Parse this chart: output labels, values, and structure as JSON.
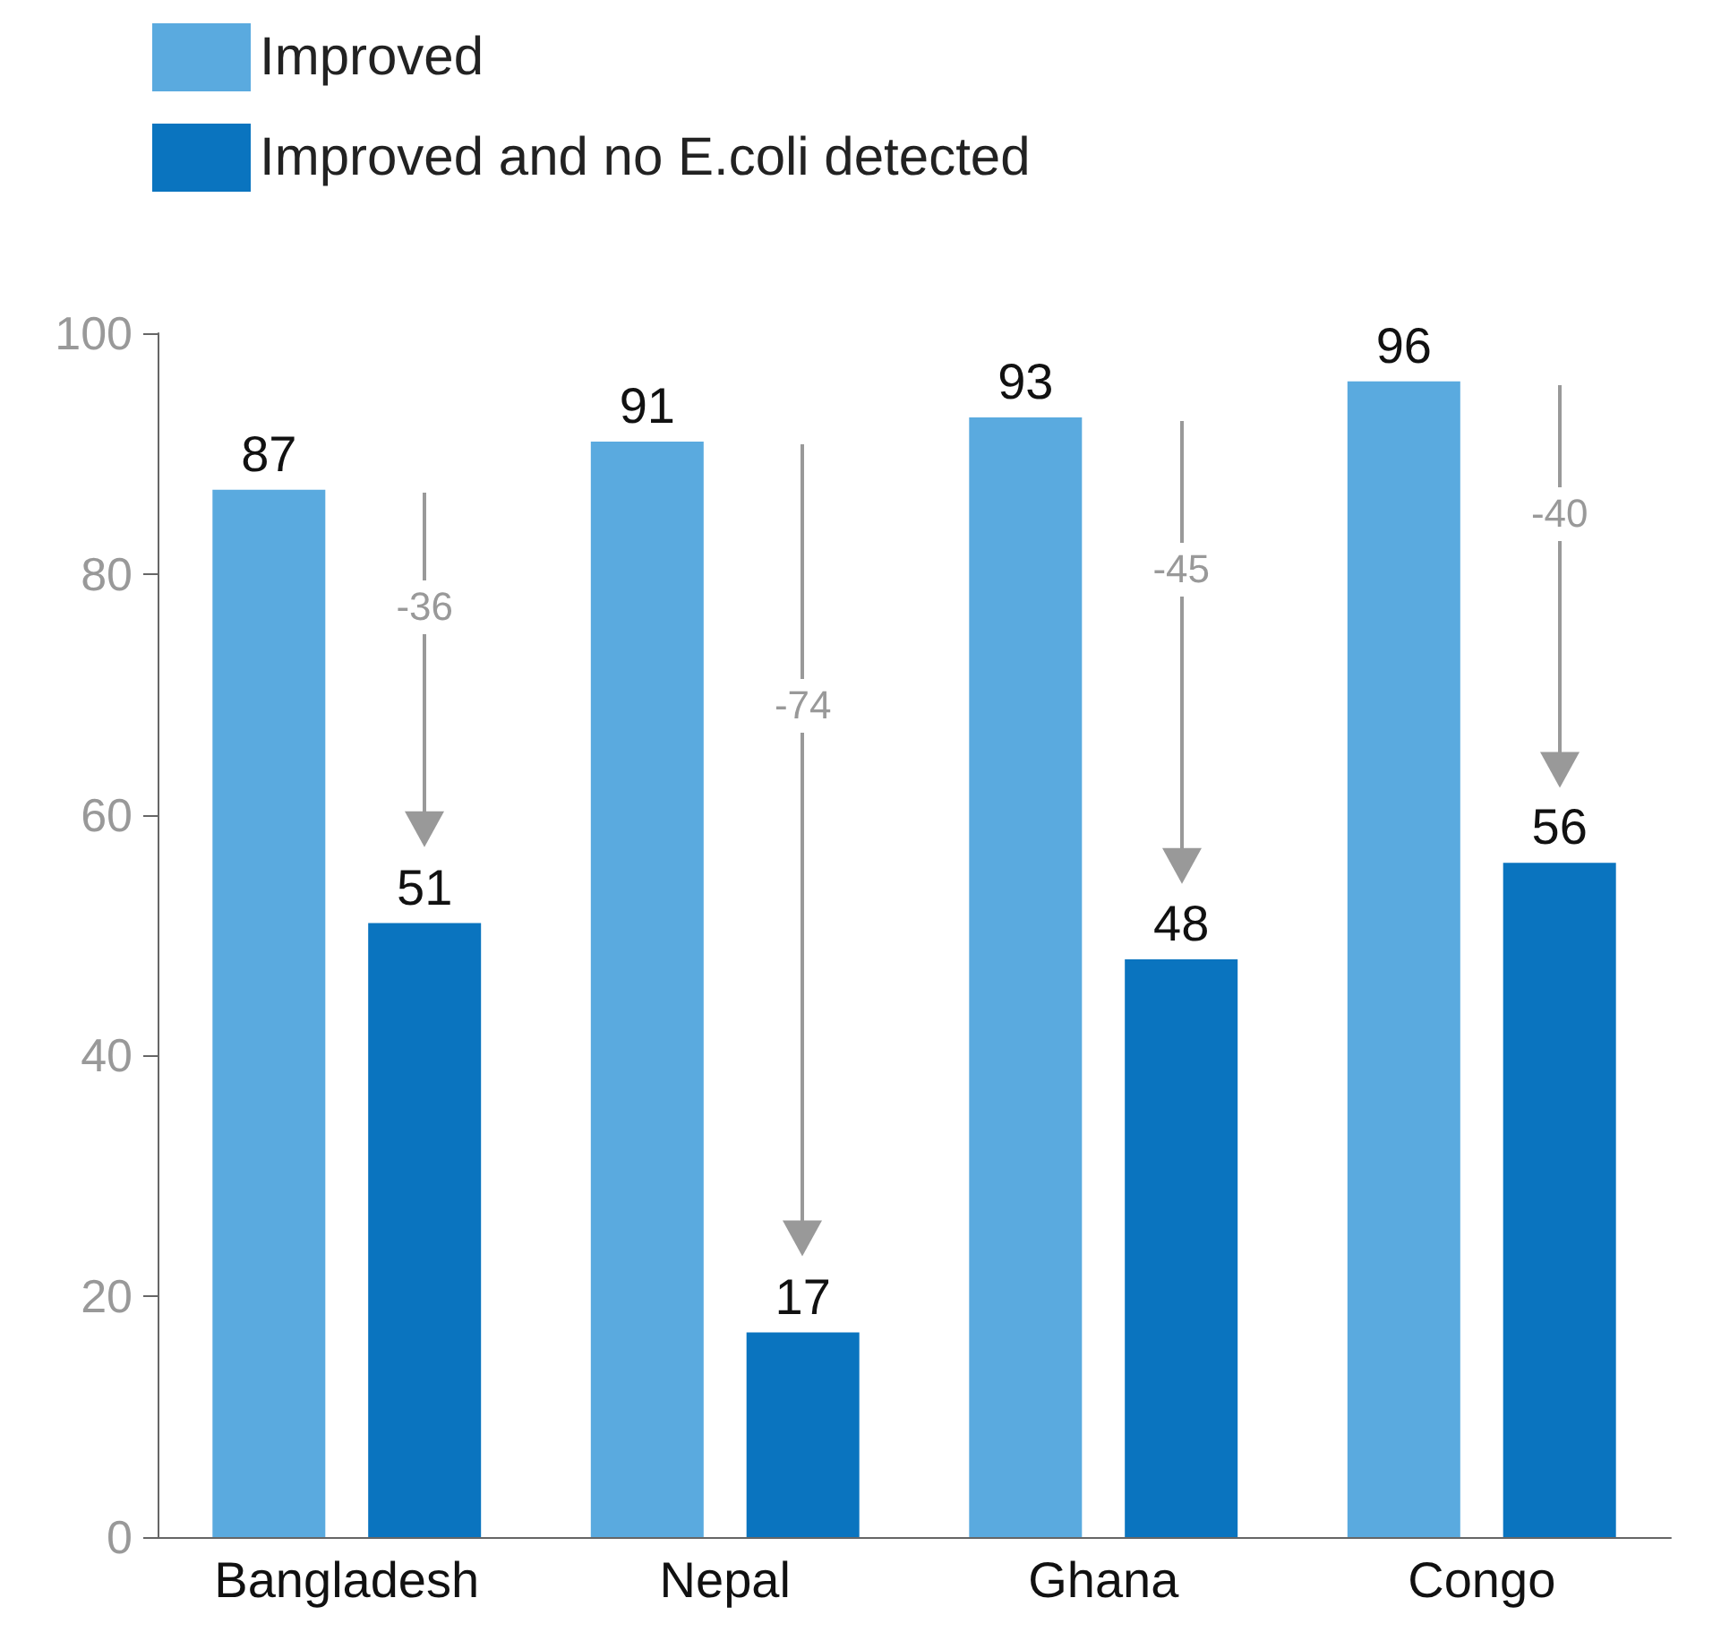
{
  "chart_data": {
    "type": "bar",
    "categories": [
      "Bangladesh",
      "Nepal",
      "Ghana",
      "Congo"
    ],
    "series": [
      {
        "name": "Improved",
        "color": "#5aaadf",
        "values": [
          87,
          91,
          93,
          96
        ]
      },
      {
        "name": "Improved and no E.coli detected",
        "color": "#0a74bf",
        "values": [
          51,
          17,
          48,
          56
        ]
      }
    ],
    "ylim": [
      0,
      100
    ],
    "yticks": [
      0,
      20,
      40,
      60,
      80,
      100
    ],
    "grid": false,
    "legend": "top left",
    "data_labels": true,
    "annotations": [
      "-36",
      "-74",
      "-45",
      "-40"
    ]
  }
}
